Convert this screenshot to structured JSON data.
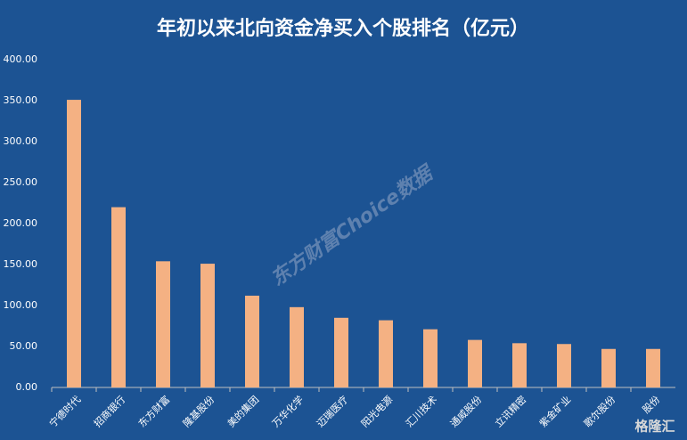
{
  "chart_data": {
    "type": "bar",
    "title": "年初以来北向资金净买入个股排名（亿元）",
    "categories": [
      "宁德时代",
      "招商银行",
      "东方财富",
      "隆基股份",
      "美的集团",
      "万华化学",
      "迈瑞医疗",
      "阳光电源",
      "汇川技术",
      "通威股份",
      "立讯精密",
      "紫金矿业",
      "歌尔股份",
      "股份"
    ],
    "values": [
      351,
      220,
      154,
      151,
      112,
      98,
      85,
      82,
      71,
      58,
      54,
      53,
      47,
      47
    ],
    "color": "#f4b183",
    "ylim": [
      0,
      400
    ],
    "yticks": [
      {
        "value": 0,
        "label": "0.00"
      },
      {
        "value": 50,
        "label": "50.00"
      },
      {
        "value": 100,
        "label": "100.00"
      },
      {
        "value": 150,
        "label": "150.00"
      },
      {
        "value": 200,
        "label": "200.00"
      },
      {
        "value": 250,
        "label": "250.00"
      },
      {
        "value": 300,
        "label": "300.00"
      },
      {
        "value": 350,
        "label": "350.00"
      },
      {
        "value": 400,
        "label": "400.00"
      }
    ],
    "grid": false,
    "watermark": "东方财富Choice数据",
    "logo": "格隆汇"
  }
}
